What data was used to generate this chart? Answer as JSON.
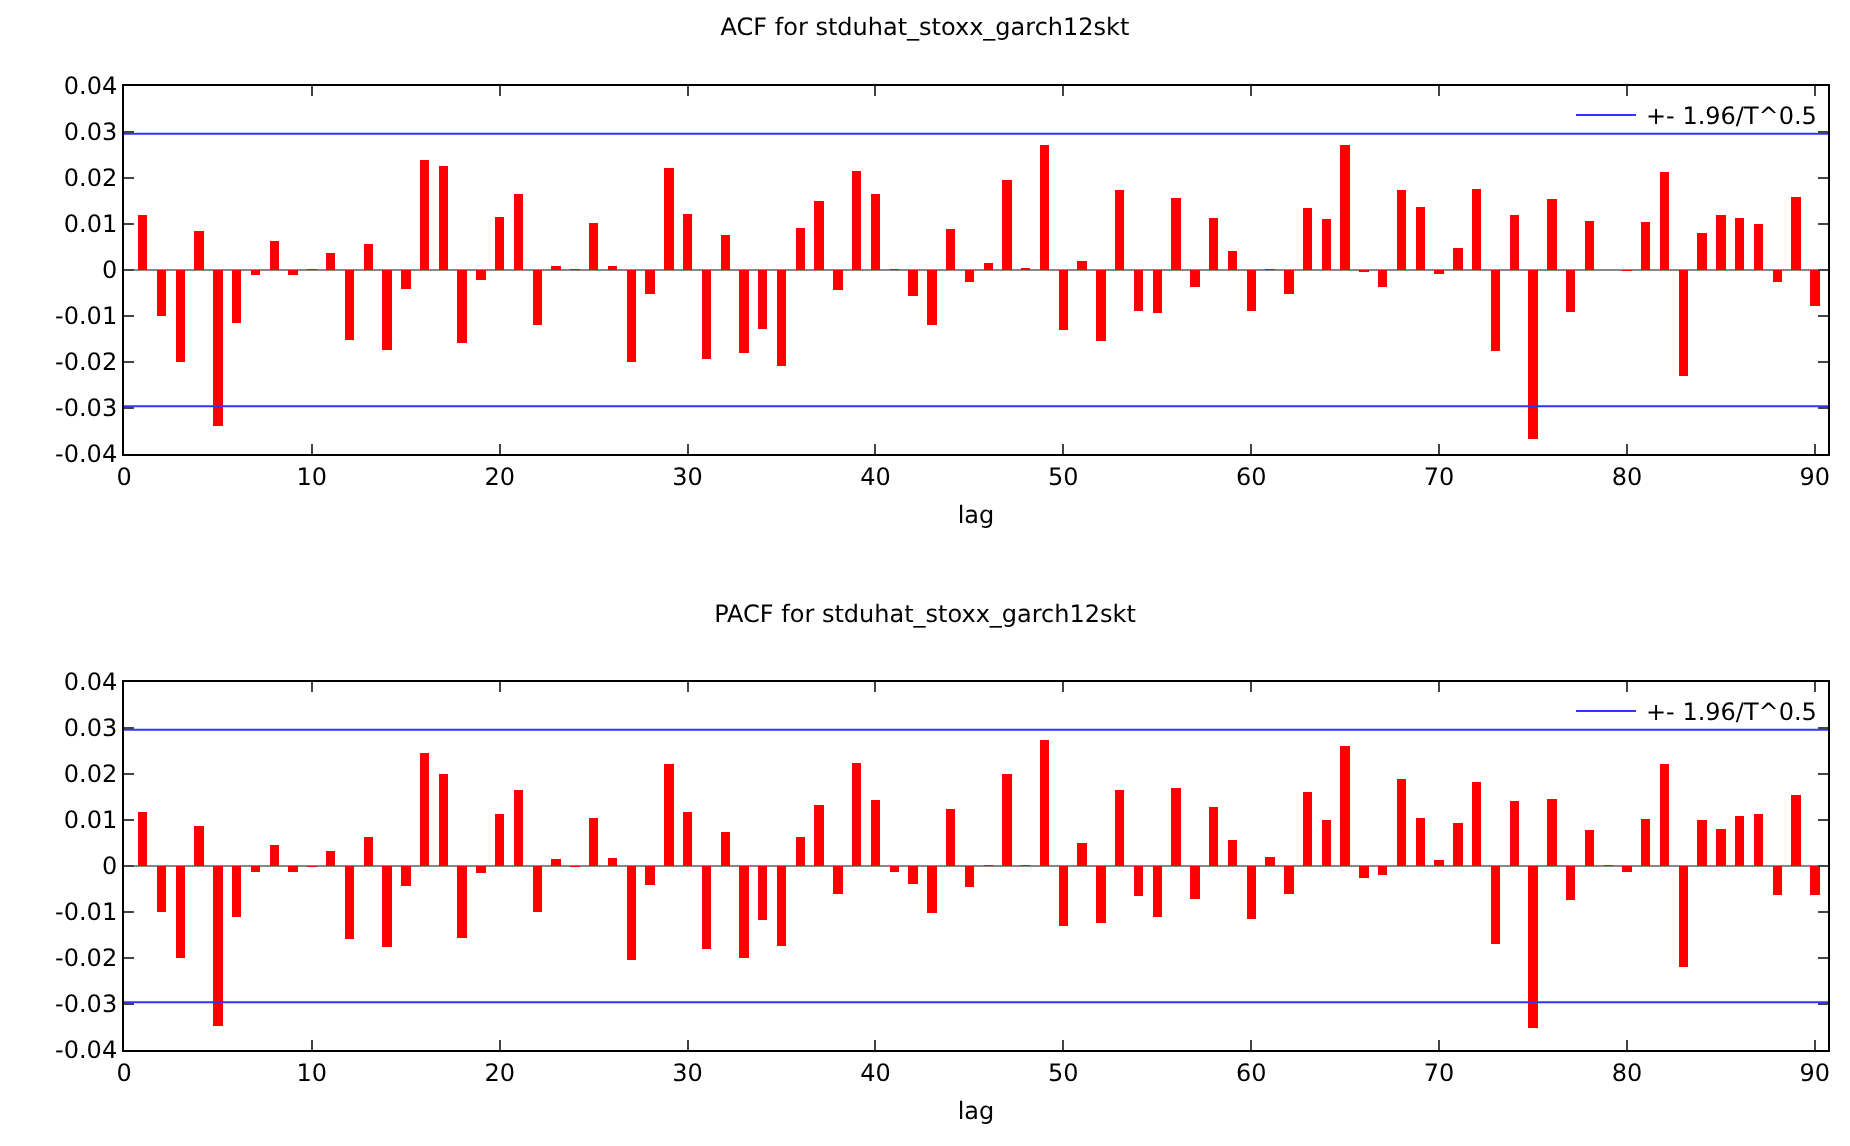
{
  "chart_data": [
    {
      "type": "bar",
      "title": "ACF for stduhat_stoxx_garch12skt",
      "xlabel": "lag",
      "color": "#ff0000",
      "legend": "top right",
      "grid": false,
      "x": [
        1,
        2,
        3,
        4,
        5,
        6,
        7,
        8,
        9,
        10,
        11,
        12,
        13,
        14,
        15,
        16,
        17,
        18,
        19,
        20,
        21,
        22,
        23,
        24,
        25,
        26,
        27,
        28,
        29,
        30,
        31,
        32,
        33,
        34,
        35,
        36,
        37,
        38,
        39,
        40,
        41,
        42,
        43,
        44,
        45,
        46,
        47,
        48,
        49,
        50,
        51,
        52,
        53,
        54,
        55,
        56,
        57,
        58,
        59,
        60,
        61,
        62,
        63,
        64,
        65,
        66,
        67,
        68,
        69,
        70,
        71,
        72,
        73,
        74,
        75,
        76,
        77,
        78,
        79,
        80,
        81,
        82,
        83,
        84,
        85,
        86,
        87,
        88,
        89,
        90
      ],
      "values": [
        0.012,
        -0.01,
        -0.02,
        0.0085,
        -0.034,
        -0.0115,
        -0.001,
        0.0063,
        -0.001,
        0.0003,
        0.0038,
        -0.0152,
        0.0057,
        -0.0173,
        -0.0042,
        0.024,
        0.0226,
        -0.0158,
        -0.0022,
        0.0116,
        0.0165,
        -0.012,
        0.0008,
        0.0003,
        0.0103,
        0.0008,
        -0.02,
        -0.0053,
        0.0222,
        0.0122,
        -0.0193,
        0.0077,
        -0.018,
        -0.0128,
        -0.0208,
        0.0092,
        0.0151,
        -0.0044,
        0.0216,
        0.0166,
        0.0002,
        -0.0057,
        -0.012,
        0.009,
        -0.0025,
        0.0016,
        0.0196,
        0.0004,
        0.0272,
        -0.013,
        0.0019,
        -0.0154,
        0.0175,
        -0.009,
        -0.0093,
        0.0157,
        -0.0037,
        0.0112,
        0.0041,
        -0.009,
        0.0002,
        -0.0052,
        0.0135,
        0.0111,
        0.0272,
        -0.0005,
        -0.0037,
        0.0173,
        0.0137,
        -0.0009,
        0.0047,
        0.0176,
        -0.0175,
        0.0119,
        -0.0367,
        0.0154,
        -0.0092,
        0.0106,
        null,
        -0.0003,
        0.0104,
        0.0213,
        -0.023,
        0.008,
        0.012,
        0.0113,
        0.01,
        -0.0025,
        0.0158,
        -0.0078
      ],
      "xlim": [
        0,
        90.7
      ],
      "xticks": [
        0,
        10,
        20,
        30,
        40,
        50,
        60,
        70,
        80,
        90
      ],
      "ylim": [
        -0.04,
        0.04
      ],
      "yticks": [
        -0.04,
        -0.03,
        -0.02,
        -0.01,
        0,
        0.01,
        0.02,
        0.03,
        0.04
      ],
      "ref_lines": [
        {
          "axis": "y",
          "value": 0.0296,
          "label": "+- 1.96/T^0.5",
          "color": "#3333ff"
        },
        {
          "axis": "y",
          "value": -0.0296,
          "label": null,
          "color": "#3333ff"
        }
      ]
    },
    {
      "type": "bar",
      "title": "PACF for stduhat_stoxx_garch12skt",
      "xlabel": "lag",
      "color": "#ff0000",
      "legend": "top right",
      "grid": false,
      "x": [
        1,
        2,
        3,
        4,
        5,
        6,
        7,
        8,
        9,
        10,
        11,
        12,
        13,
        14,
        15,
        16,
        17,
        18,
        19,
        20,
        21,
        22,
        23,
        24,
        25,
        26,
        27,
        28,
        29,
        30,
        31,
        32,
        33,
        34,
        35,
        36,
        37,
        38,
        39,
        40,
        41,
        42,
        43,
        44,
        45,
        46,
        47,
        48,
        49,
        50,
        51,
        52,
        53,
        54,
        55,
        56,
        57,
        58,
        59,
        60,
        61,
        62,
        63,
        64,
        65,
        66,
        67,
        68,
        69,
        70,
        71,
        72,
        73,
        74,
        75,
        76,
        77,
        78,
        79,
        80,
        81,
        82,
        83,
        84,
        85,
        86,
        87,
        88,
        89,
        90
      ],
      "values": [
        0.0118,
        -0.01,
        -0.0199,
        0.0087,
        -0.0348,
        -0.011,
        -0.0012,
        0.0045,
        -0.0013,
        -0.0003,
        0.0032,
        -0.0158,
        0.0063,
        -0.0176,
        -0.0044,
        0.0245,
        0.0201,
        -0.0157,
        -0.0016,
        0.0114,
        0.0166,
        -0.0099,
        0.0016,
        -0.0003,
        0.0105,
        0.0018,
        -0.0205,
        -0.0042,
        0.0222,
        0.0118,
        -0.018,
        0.0073,
        -0.02,
        -0.0117,
        -0.0174,
        0.0064,
        0.0132,
        -0.006,
        0.0224,
        0.0143,
        -0.0012,
        -0.0039,
        -0.0103,
        0.0125,
        -0.0046,
        0.0002,
        0.0201,
        0.0002,
        0.0274,
        -0.013,
        0.005,
        -0.0123,
        0.0165,
        -0.0066,
        -0.011,
        0.017,
        -0.0071,
        0.0129,
        0.0056,
        -0.0115,
        0.0019,
        -0.0061,
        0.0161,
        0.0101,
        0.026,
        -0.0027,
        -0.0019,
        0.019,
        0.0104,
        0.0012,
        0.0093,
        0.0182,
        -0.017,
        0.0142,
        -0.0352,
        0.0146,
        -0.0074,
        0.0078,
        0.0003,
        -0.0013,
        0.0103,
        0.0222,
        -0.022,
        0.0101,
        0.008,
        0.0108,
        0.0112,
        -0.0064,
        0.0154,
        -0.0064
      ],
      "xlim": [
        0,
        90.7
      ],
      "xticks": [
        0,
        10,
        20,
        30,
        40,
        50,
        60,
        70,
        80,
        90
      ],
      "ylim": [
        -0.04,
        0.04
      ],
      "yticks": [
        -0.04,
        -0.03,
        -0.02,
        -0.01,
        0,
        0.01,
        0.02,
        0.03,
        0.04
      ],
      "ref_lines": [
        {
          "axis": "y",
          "value": 0.0296,
          "label": "+- 1.96/T^0.5",
          "color": "#3333ff"
        },
        {
          "axis": "y",
          "value": -0.0296,
          "label": null,
          "color": "#3333ff"
        }
      ]
    }
  ]
}
